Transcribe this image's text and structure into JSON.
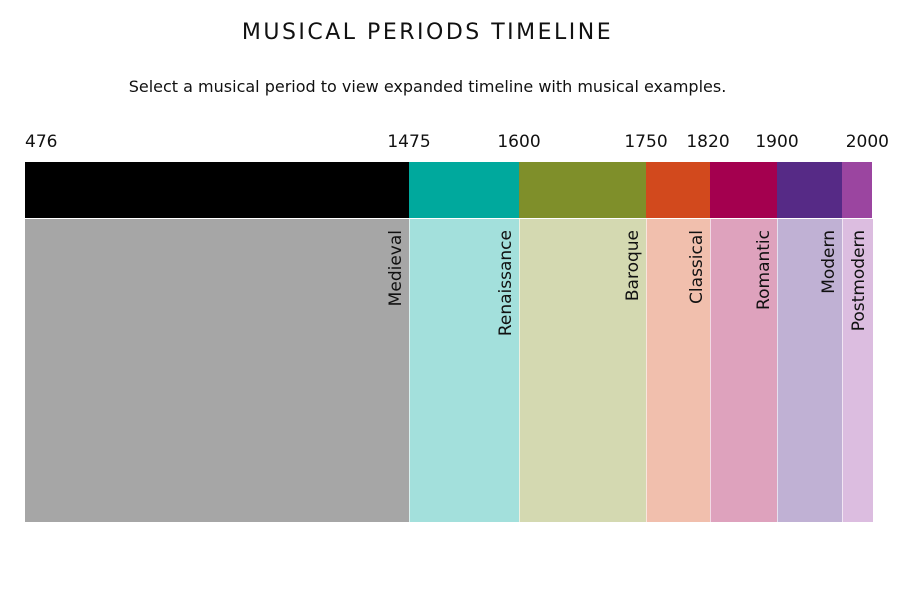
{
  "header": {
    "title": "MUSICAL PERIODS TIMELINE",
    "instruction": "Select a musical period to view expanded timeline with musical examples."
  },
  "timeline": {
    "years": [
      "476",
      "1475",
      "1600",
      "1750",
      "1820",
      "1900",
      "2000"
    ],
    "periods": [
      {
        "label": "Medieval",
        "start": 476,
        "end": 1475,
        "bar_color": "#000000",
        "body_color": "#a6a6a6"
      },
      {
        "label": "Renaissance",
        "start": 1475,
        "end": 1600,
        "bar_color": "#00a99d",
        "body_color": "#a3e0dc"
      },
      {
        "label": "Baroque",
        "start": 1600,
        "end": 1750,
        "bar_color": "#7f8f2a",
        "body_color": "#d4d9b1"
      },
      {
        "label": "Classical",
        "start": 1750,
        "end": 1820,
        "bar_color": "#d2491d",
        "body_color": "#f1bfad"
      },
      {
        "label": "Romantic",
        "start": 1820,
        "end": 1900,
        "bar_color": "#a4004f",
        "body_color": "#dea2bd"
      },
      {
        "label": "Modern",
        "start": 1900,
        "end": 2000,
        "bar_color": "#562a86",
        "body_color": "#c0b1d4"
      },
      {
        "label": "Postmodern",
        "start": 2000,
        "end": null,
        "bar_color": "#9b45a0",
        "body_color": "#dcbde0"
      }
    ]
  }
}
